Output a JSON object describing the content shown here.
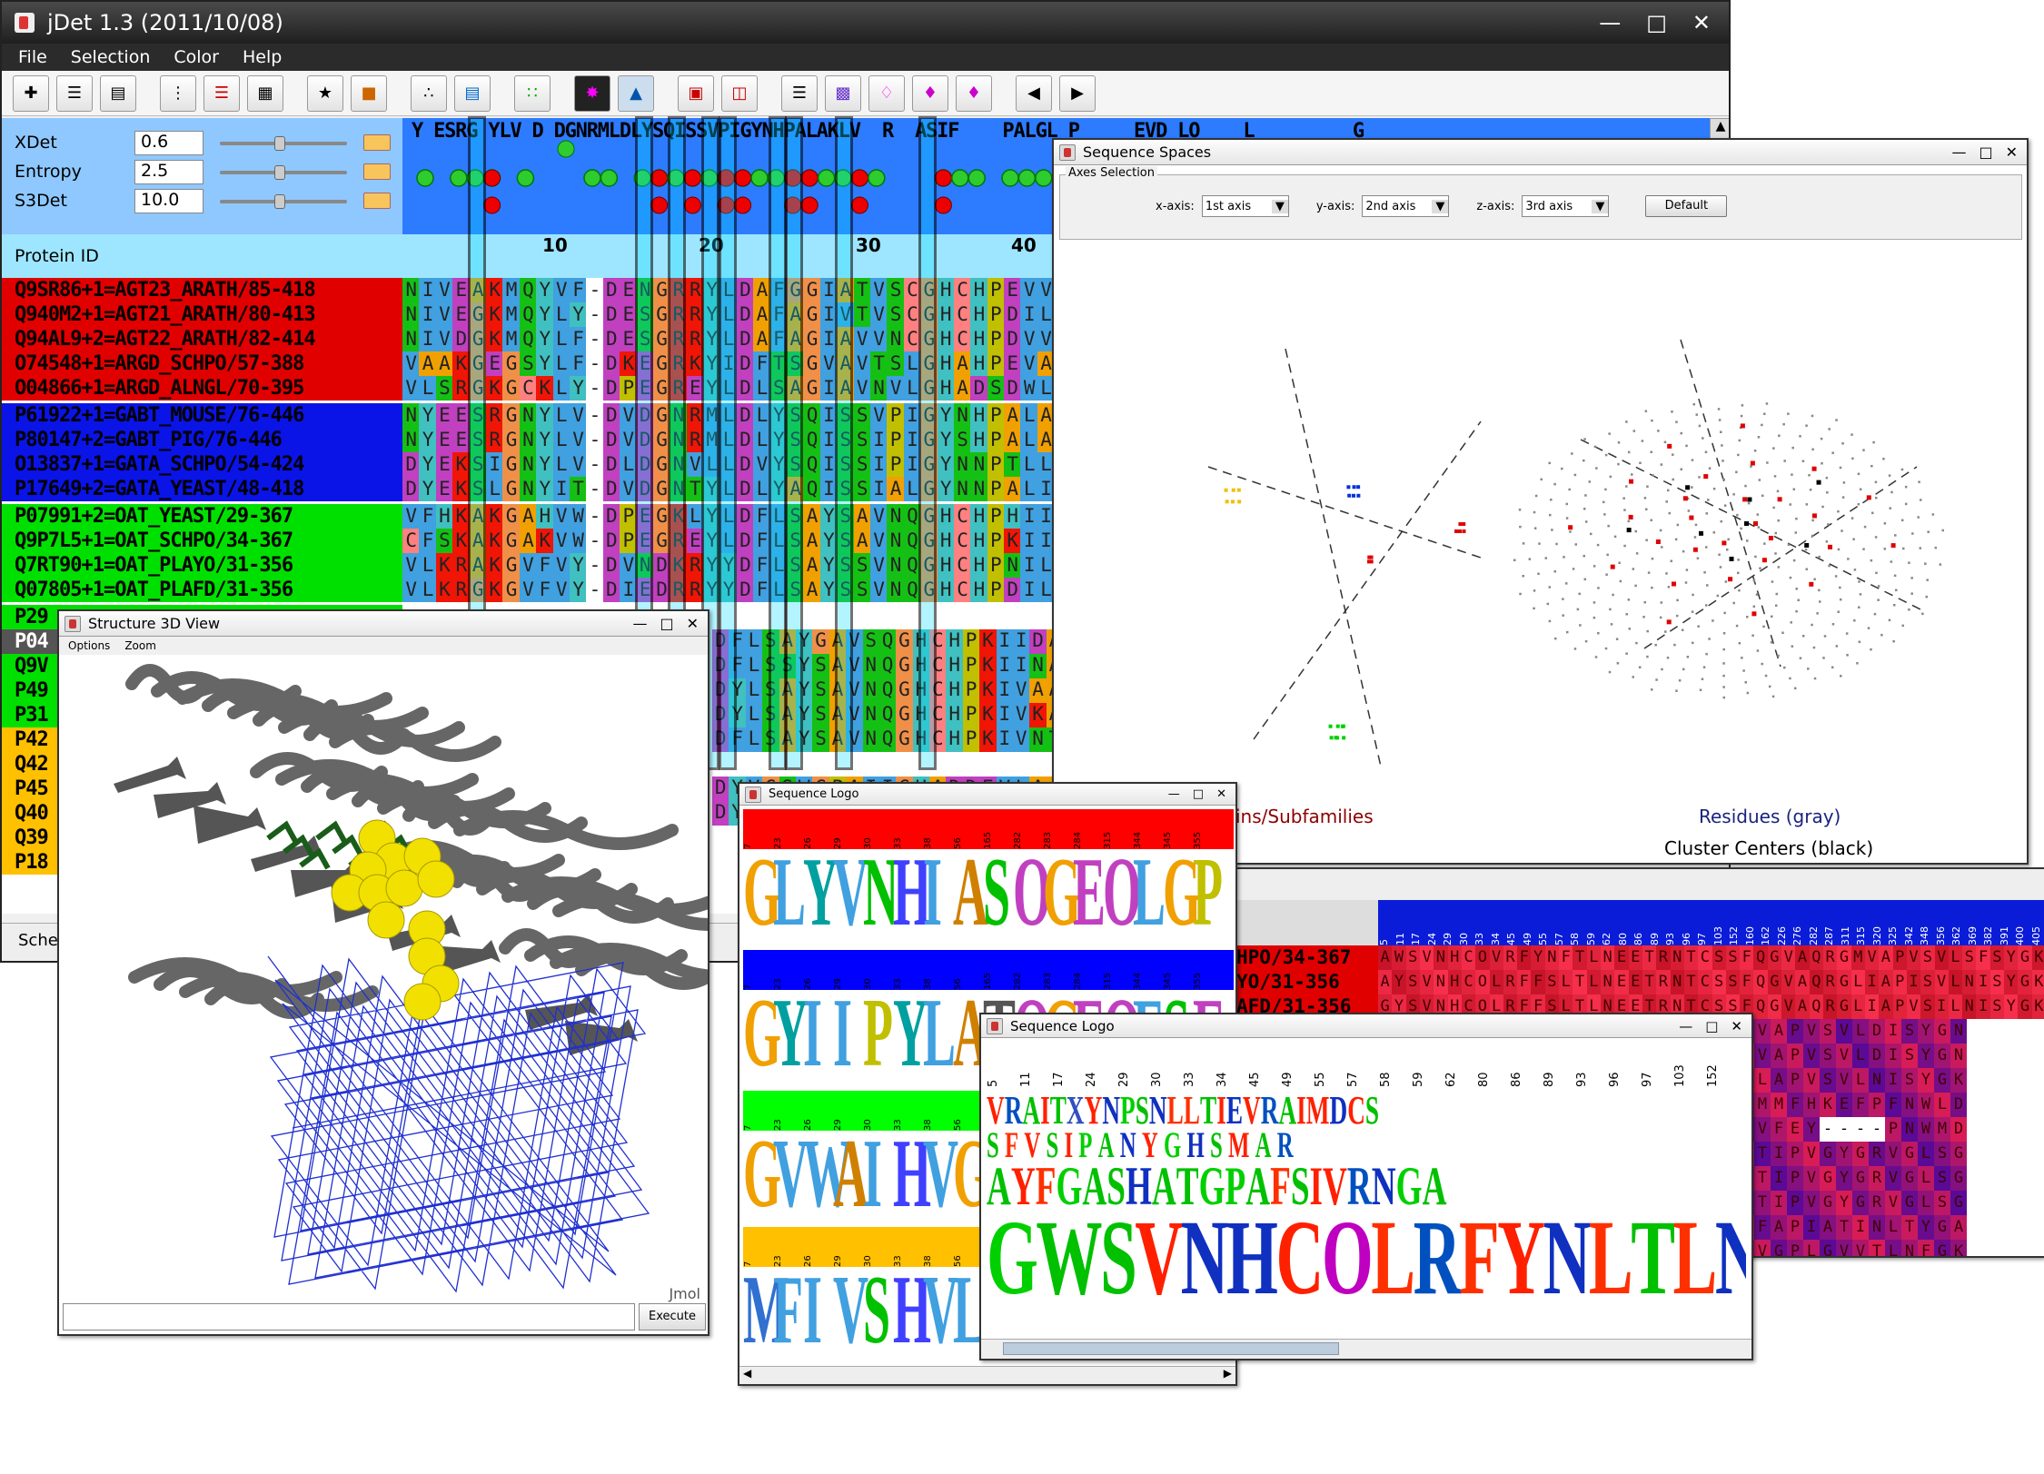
{
  "main": {
    "title": "jDet 1.3 (2011/10/08)",
    "menu": [
      "File",
      "Selection",
      "Color",
      "Help"
    ],
    "params": [
      {
        "label": "XDet",
        "value": "0.6"
      },
      {
        "label": "Entropy",
        "value": "2.5"
      },
      {
        "label": "S3Det",
        "value": "10.0"
      }
    ],
    "protein_id_header": "Protein ID",
    "ruler": [
      "10",
      "20",
      "30",
      "40"
    ],
    "consensus": "Y ESRG YLV D DGNRMLDLYSQISSVPIGYNHPALAKLV  R  ASIF    PALGL P     EVD LO    L         G",
    "sequences": [
      {
        "id": "Q9SR86+1=AGT23_ARATH/85-418",
        "seq": "NIVEAKMQYVF-DENGRRYLDAFGGIATVSCGHCHPEVVNS",
        "bg": "#e00000"
      },
      {
        "id": "Q940M2+1=AGT21_ARATH/80-413",
        "seq": "NIVEGKMQYLY-DESGRRYLDAFAGIVTVSCGHCHPDILNA",
        "bg": "#e00000"
      },
      {
        "id": "Q94AL9+2=AGT22_ARATH/82-414",
        "seq": "NIVDGKMQYLF-DESGRRYLDAFAGIAVVNCGHCHPDVVEP",
        "bg": "#e00000"
      },
      {
        "id": "O74548+1=ARGD_SCHPO/57-388",
        "seq": "VAAKGEGSYLF-DKEGRKYIDFTSGVAVTSLGHAHPEVARL",
        "bg": "#e00000"
      },
      {
        "id": "O04866+1=ARGD_ALNGL/70-395",
        "seq": "VLSRGKGCKLY-DPEGREYLDLSAGIAVNVLGHADSDWLRA",
        "bg": "#e00000"
      },
      {
        "id": "P61922+1=GABT_MOUSE/76-446",
        "seq": "NYEESRGNYLV-DVDGNRMLDLYSQISSVPIGYNHPALAKL",
        "bg": "#0a14e6"
      },
      {
        "id": "P80147+2=GABT_PIG/76-446",
        "seq": "NYEESRGNYLV-DVDGNRMLDLYSQISSIPIGYSHPALAKL",
        "bg": "#0a14e6"
      },
      {
        "id": "O13837+1=GATA_SCHPO/54-424",
        "seq": "DYEKSIGNYLV-DLDGNVLLDVYSQISSIPIGYNNPTLLKA",
        "bg": "#0a14e6"
      },
      {
        "id": "P17649+2=GATA_YEAST/48-418",
        "seq": "DYEKSLGNYIT-DVDGNTYLDLYAQISSIALGYNNPALIKA",
        "bg": "#0a14e6"
      },
      {
        "id": "P07991+2=OAT_YEAST/29-367",
        "seq": "VFHKAKGAHVW-DPEGKLYLDFLSAYSAVNQGHCHPHIIKA",
        "bg": "#00e000"
      },
      {
        "id": "Q9P7L5+1=OAT_SCHPO/34-367",
        "seq": "CFSKAKGAKVW-DPEGREYLDFLSAYSAVNQGHCHPKIIEA",
        "bg": "#00e000"
      },
      {
        "id": "Q7RT90+1=OAT_PLAYO/31-356",
        "seq": "VLKRAKGVFVY-DVNDKRYYDFLSAYSSVNQGHCHPNILNA",
        "bg": "#00e000"
      },
      {
        "id": "Q07805+1=OAT_PLAFD/31-356",
        "seq": "VLKRGKGVFVY-DIEDRRYYDFLSAYSSVNQGHCHPDILNA",
        "bg": "#00e000"
      }
    ],
    "partial_ids": [
      {
        "id": "P29",
        "bg": "#00e000"
      },
      {
        "id": "P04",
        "bg": "#555555"
      },
      {
        "id": "Q9V",
        "bg": "#00e000"
      },
      {
        "id": "P49",
        "bg": "#00e000"
      },
      {
        "id": "P31",
        "bg": "#00e000"
      },
      {
        "id": "P42",
        "bg": "#ffc000"
      },
      {
        "id": "Q42",
        "bg": "#ffc000"
      },
      {
        "id": "P45",
        "bg": "#ffc000"
      },
      {
        "id": "Q40",
        "bg": "#ffc000"
      },
      {
        "id": "Q39",
        "bg": "#ffc000"
      },
      {
        "id": "P18",
        "bg": "#ffc000"
      }
    ],
    "lower_seqs": [
      "DFLSAYGAVSQGHCHPKIIDA",
      "DFLSSYSAVNQGHCHPKIINA",
      "DYLSAYSAVNQGHCHPKIVAA",
      "DYLSAYSAVNQGHCHPKIVKA",
      "DFLSAYSAVNQGHCHPKIVNT",
      "DYVGSWGPAIIGHADDEVLAA",
      "DYVSAWGPAIIGHADDEVLAA"
    ],
    "status_partial": "Sche"
  },
  "sequence_spaces": {
    "title": "Sequence Spaces",
    "group_label": "Axes Selection",
    "x_label": "x-axis:",
    "x_value": "1st axis",
    "y_label": "y-axis:",
    "y_value": "2nd axis",
    "z_label": "z-axis:",
    "z_value": "3rd axis",
    "default_button": "Default",
    "legend_left": "ins/Subfamilies",
    "legend_right": "Residues (gray)",
    "legend_bottom": "Cluster Centers (black)"
  },
  "structure": {
    "title": "Structure 3D View",
    "menu": [
      "Options",
      "Zoom"
    ],
    "watermark": "Jmol",
    "execute": "Execute"
  },
  "logo1": {
    "title": "Sequence Logo",
    "rows": [
      {
        "band": "#ff0000",
        "nums": [
          "7",
          "23",
          "26",
          "29",
          "30",
          "33",
          "38",
          "56",
          "165",
          "282",
          "283",
          "284",
          "315",
          "344",
          "345",
          "355"
        ],
        "letters": "GLYVNHIASOGEOLGP"
      },
      {
        "band": "#0000ff",
        "nums": [
          "7",
          "23",
          "26",
          "29",
          "30",
          "33",
          "38",
          "56",
          "165",
          "282",
          "283",
          "284",
          "315",
          "344",
          "345",
          "355"
        ],
        "letters": "GYIIPYLATOGEOFSE"
      },
      {
        "band": "#00ff00",
        "nums": [
          "7",
          "23",
          "26",
          "29",
          "30",
          "33",
          "38",
          "56"
        ],
        "letters": "GVWAIHVG"
      },
      {
        "band": "#ffc000",
        "nums": [
          "7",
          "23",
          "26",
          "29",
          "30",
          "33",
          "38",
          "56"
        ],
        "letters": "MFIVSHVL"
      }
    ]
  },
  "logo2": {
    "title": "Sequence Logo",
    "nums": [
      "5",
      "11",
      "17",
      "24",
      "29",
      "30",
      "33",
      "34",
      "45",
      "49",
      "55",
      "57",
      "58",
      "59",
      "62",
      "80",
      "86",
      "89",
      "93",
      "96",
      "97",
      "103",
      "152"
    ],
    "top": "GWSVNHCOLRFYNLTLNEETRN",
    "mid": "AYFGASHATGPAFSIVRNGA",
    "sub": "SFVSIPANYGHSMAR",
    "upper": "VRAITXYNPSNLLTIEVRAIMDCS"
  },
  "table2": {
    "ids": [
      "HPO/34-367",
      "YO/31-356",
      "AFD/31-356"
    ],
    "header_nums": [
      "5",
      "11",
      "17",
      "24",
      "29",
      "30",
      "33",
      "34",
      "45",
      "49",
      "55",
      "57",
      "58",
      "59",
      "62",
      "80",
      "86",
      "89",
      "93",
      "96",
      "97",
      "103",
      "152",
      "160",
      "162",
      "226",
      "276",
      "282",
      "287",
      "311",
      "315",
      "320",
      "325",
      "342",
      "348",
      "356",
      "362",
      "369",
      "382",
      "391",
      "400",
      "405"
    ],
    "rows": [
      "AWSVNHCOVRFYNFTLNEETRNTCSSFQGVAQRGMVAPVSVLSFSYGK",
      "AYSVNHCOLRFFSLTLNEETRNTCSSFQGVAQRGLIAPISVLNISYGK",
      "GYSVNHCOLRFFSLTLNEETRNTCSSFQGVAQRGLIAPVSILNISYGK",
      "QGVAQRGWVAPVSVLDISYGN",
      "QGVAQRGWVAPVSVLDISYGN",
      "QGVAQRGLLAPVSVLNISYGK",
      "QSDVQSGFMMFHKEFPFNWLD",
      "QSDVQSGLVFEY----PNWMD",
      "VGFFMRAGTIPVGYGRVGLSG",
      "VGFFMRSGTIPVGYGRVGLSG",
      "VGFFMRAGTIPVGYGRVGLSG",
      "QGVHQRGLFAPIATINLTYGA",
      "QGAAQRGFVGPLGVVTLNFGK",
      "QGAAQRGYVGPLGVVTLNFGK"
    ]
  }
}
